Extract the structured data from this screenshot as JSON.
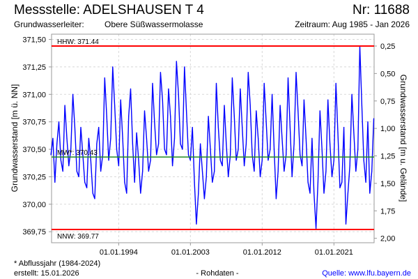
{
  "header": {
    "title": "Messstelle: ADELSHAUSEN T 4",
    "number": "Nr: 11688",
    "aquifer_label": "Grundwasserleiter:",
    "aquifer_value": "Obere Süßwassermolasse",
    "period": "Zeitraum: Aug 1985 - Jan 2026"
  },
  "footer": {
    "note": "* Abflussjahr (1984-2024)",
    "created": "erstellt:  15.01.2026",
    "rawdata": "- Rohdaten -",
    "source": "Quelle: www.lfu.bayern.de"
  },
  "colors": {
    "series": "#0000ff",
    "extreme": "#ff0000",
    "mean": "#228b22",
    "grid": "#d8d8d8",
    "source": "#0000ff"
  },
  "chart_data": {
    "type": "line",
    "ylabel": "Grundwasserstand [m ü. NN]",
    "ylabel_right": "Grundwasserstand [m u. Gelände]",
    "ylim": [
      369.69,
      371.55
    ],
    "yticks": [
      "371,50",
      "371,25",
      "371,00",
      "370,75",
      "370,50",
      "370,25",
      "370,00",
      "369,75"
    ],
    "ytick_values": [
      371.5,
      371.25,
      371.0,
      370.75,
      370.5,
      370.25,
      370.0,
      369.75
    ],
    "ground_level": 371.69,
    "yticks_right": [
      "0,25",
      "0,50",
      "0,75",
      "1,00",
      "1,25",
      "1,50",
      "1,75",
      "2,00"
    ],
    "ytick_right_values": [
      0.25,
      0.5,
      0.75,
      1.0,
      1.25,
      1.5,
      1.75,
      2.0
    ],
    "xlim": [
      1985.58,
      2026.04
    ],
    "xticks": [
      "01.01.1994",
      "01.01.2003",
      "01.01.2012",
      "01.01.2021"
    ],
    "xtick_values": [
      1994,
      2003,
      2012,
      2021
    ],
    "reference_lines": [
      {
        "label": "HHW: 371.44",
        "value": 371.44,
        "kind": "extreme"
      },
      {
        "label": "MW*: 370.43",
        "value": 370.43,
        "kind": "mean"
      },
      {
        "label": "NNW: 369.77",
        "value": 369.77,
        "kind": "extreme"
      }
    ],
    "series": [
      {
        "name": "Grundwasserstand",
        "x_start": 1985.5,
        "x_step": 0.25,
        "values": [
          370.45,
          370.6,
          370.2,
          370.55,
          370.75,
          370.4,
          370.3,
          370.9,
          370.6,
          370.35,
          370.5,
          371.0,
          370.7,
          370.3,
          370.25,
          370.7,
          370.45,
          370.2,
          370.15,
          370.6,
          370.4,
          370.1,
          370.05,
          370.55,
          370.7,
          370.3,
          370.45,
          371.15,
          370.8,
          370.4,
          370.6,
          371.25,
          370.9,
          370.5,
          370.35,
          370.95,
          370.6,
          370.2,
          370.1,
          370.8,
          371.05,
          370.55,
          370.2,
          370.65,
          370.4,
          370.1,
          370.3,
          370.85,
          370.6,
          370.3,
          370.4,
          371.1,
          370.75,
          370.45,
          370.55,
          371.2,
          370.95,
          370.5,
          370.45,
          371.05,
          370.8,
          370.35,
          370.6,
          371.3,
          371.0,
          370.55,
          370.5,
          371.25,
          370.85,
          370.45,
          370.4,
          370.7,
          370.2,
          369.82,
          370.1,
          370.55,
          370.3,
          370.05,
          370.25,
          370.8,
          370.5,
          370.2,
          370.3,
          371.1,
          370.7,
          370.4,
          370.35,
          370.9,
          370.55,
          370.25,
          370.45,
          371.15,
          370.8,
          370.4,
          370.5,
          371.05,
          370.7,
          370.35,
          370.55,
          371.2,
          370.9,
          370.45,
          370.3,
          370.85,
          370.6,
          370.25,
          370.4,
          371.1,
          370.75,
          370.4,
          370.5,
          371.0,
          370.5,
          370.05,
          370.3,
          370.9,
          370.6,
          370.3,
          370.45,
          371.15,
          370.7,
          370.25,
          370.55,
          371.2,
          370.85,
          370.45,
          370.35,
          370.95,
          370.6,
          370.2,
          370.1,
          370.6,
          370.1,
          369.78,
          370.2,
          370.85,
          370.5,
          370.1,
          370.3,
          370.95,
          370.55,
          370.25,
          370.4,
          371.1,
          370.65,
          370.15,
          370.2,
          370.7,
          369.82,
          370.1,
          370.35,
          371.0,
          370.65,
          370.3,
          370.5,
          371.44,
          370.9,
          370.4,
          370.2,
          370.75,
          370.1,
          370.3,
          370.78
        ]
      }
    ]
  }
}
